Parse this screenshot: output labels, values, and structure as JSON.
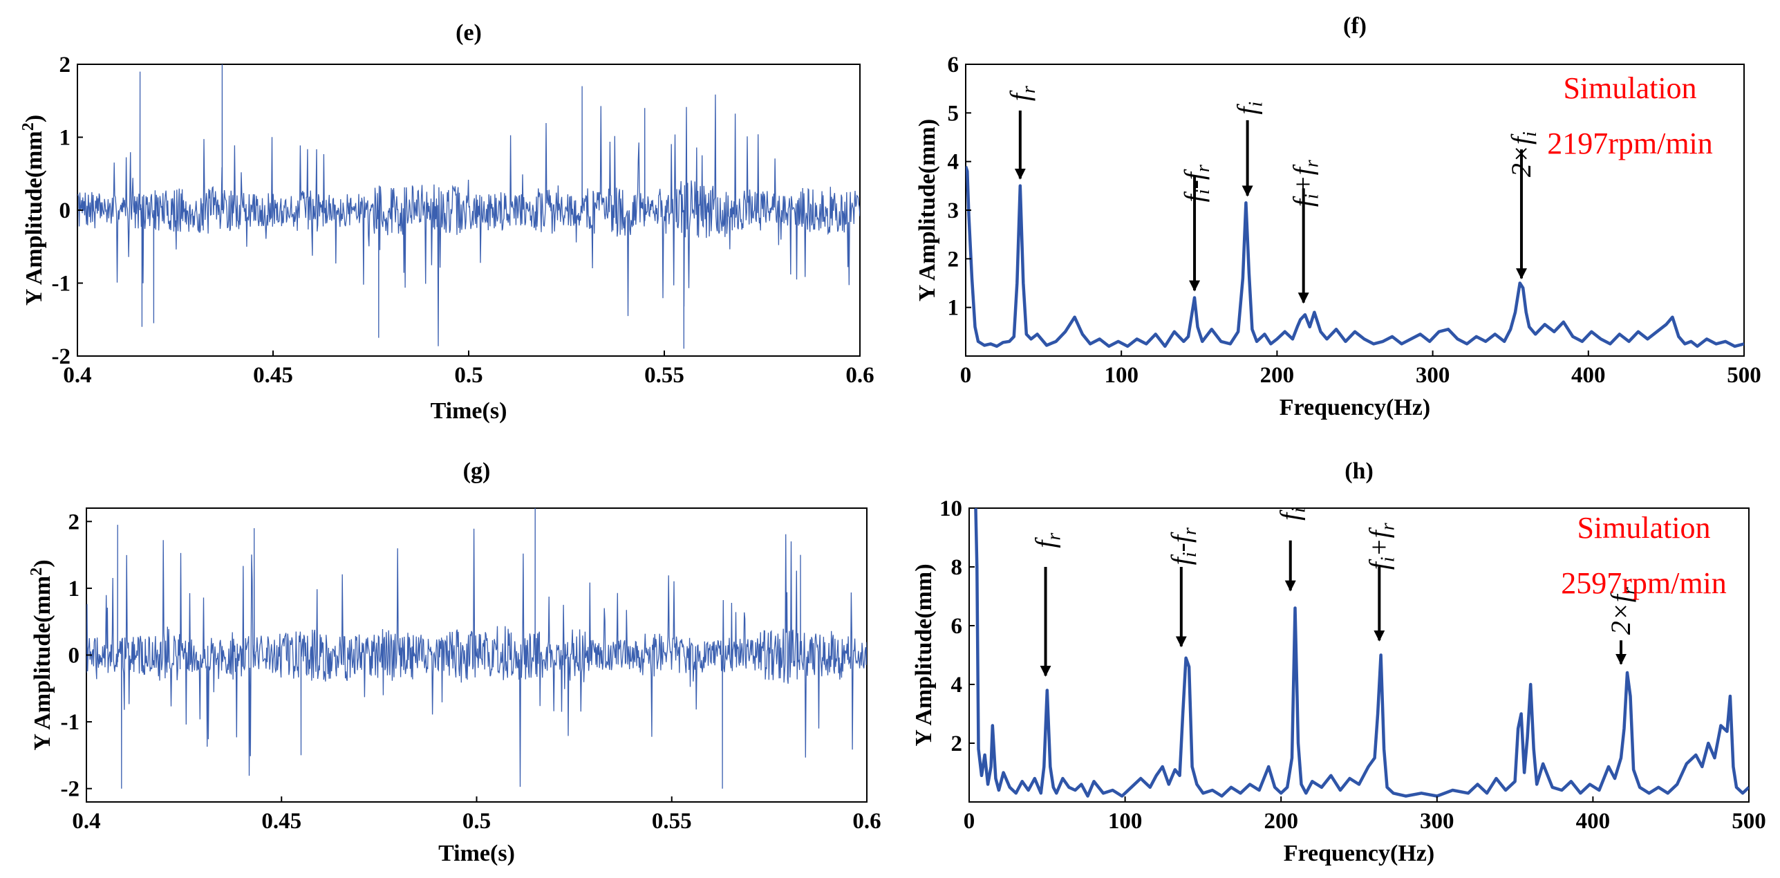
{
  "chart_data": [
    {
      "panel": "e",
      "type": "line",
      "title": "(e)",
      "xlabel": "Time(s)",
      "ylabel_main": "Y Amplitude(mm",
      "ylabel_sup": "2",
      "ylabel_end": ")",
      "xlim": [
        0.4,
        0.6
      ],
      "ylim": [
        -2,
        2
      ],
      "xticks": [
        0.4,
        0.45,
        0.5,
        0.55,
        0.6
      ],
      "yticks": [
        -2,
        -1,
        0,
        1,
        2
      ],
      "xtick_labels": [
        "0.4",
        "0.45",
        "0.5",
        "0.55",
        "0.6"
      ],
      "ytick_labels": [
        "-2",
        "-1",
        "0",
        "1",
        "2"
      ],
      "signal": {
        "seed": 7,
        "samples": 1300,
        "base_amplitude": 0.28,
        "spike_probability": 0.045,
        "spike_amplitude": 0.85
      },
      "peaks": [
        {
          "x": 0.416,
          "y": 1.9
        },
        {
          "x": 0.4165,
          "y": -1.6
        },
        {
          "x": 0.4195,
          "y": -1.55
        },
        {
          "x": 0.437,
          "y": 2.0
        },
        {
          "x": 0.477,
          "y": -1.75
        },
        {
          "x": 0.529,
          "y": 1.7
        },
        {
          "x": 0.545,
          "y": 1.4
        },
        {
          "x": 0.555,
          "y": -1.9
        }
      ],
      "color": "#3a5fb0"
    },
    {
      "panel": "f",
      "type": "line",
      "title": "(f)",
      "xlabel": "Frequency(Hz)",
      "ylabel": "Y Amplitude(mm)",
      "xlim": [
        0,
        500
      ],
      "ylim": [
        0,
        6
      ],
      "xticks": [
        0,
        100,
        200,
        300,
        400,
        500
      ],
      "yticks": [
        1,
        2,
        3,
        4,
        5,
        6
      ],
      "xtick_labels": [
        "0",
        "100",
        "200",
        "300",
        "400",
        "500"
      ],
      "ytick_labels": [
        "1",
        "2",
        "3",
        "4",
        "5",
        "6"
      ],
      "x": [
        0,
        1,
        2,
        4,
        6,
        8,
        12,
        16,
        20,
        24,
        28,
        31,
        33,
        35,
        37,
        39,
        42,
        46,
        52,
        58,
        64,
        70,
        75,
        80,
        86,
        92,
        98,
        104,
        110,
        116,
        122,
        128,
        134,
        140,
        143,
        145,
        147,
        149,
        152,
        158,
        164,
        170,
        175,
        178,
        180,
        182,
        184,
        187,
        192,
        196,
        200,
        205,
        210,
        213,
        215,
        218,
        221,
        224,
        228,
        232,
        238,
        244,
        250,
        256,
        262,
        268,
        274,
        280,
        286,
        292,
        298,
        304,
        310,
        316,
        322,
        328,
        334,
        340,
        346,
        350,
        353,
        356,
        358,
        360,
        362,
        366,
        372,
        378,
        384,
        390,
        396,
        402,
        408,
        414,
        420,
        426,
        432,
        438,
        444,
        450,
        454,
        458,
        462,
        466,
        470,
        476,
        482,
        488,
        494,
        500
      ],
      "y": [
        3.9,
        3.8,
        2.9,
        1.6,
        0.6,
        0.3,
        0.22,
        0.25,
        0.2,
        0.28,
        0.3,
        0.4,
        1.5,
        3.5,
        1.5,
        0.45,
        0.35,
        0.45,
        0.22,
        0.3,
        0.5,
        0.8,
        0.45,
        0.25,
        0.35,
        0.2,
        0.3,
        0.2,
        0.35,
        0.25,
        0.45,
        0.2,
        0.5,
        0.3,
        0.4,
        0.8,
        1.2,
        0.6,
        0.3,
        0.55,
        0.3,
        0.25,
        0.5,
        1.6,
        3.15,
        1.7,
        0.55,
        0.3,
        0.45,
        0.25,
        0.35,
        0.5,
        0.35,
        0.6,
        0.75,
        0.85,
        0.6,
        0.9,
        0.5,
        0.35,
        0.55,
        0.3,
        0.5,
        0.35,
        0.25,
        0.3,
        0.4,
        0.25,
        0.35,
        0.45,
        0.3,
        0.5,
        0.55,
        0.35,
        0.25,
        0.4,
        0.3,
        0.45,
        0.3,
        0.55,
        0.9,
        1.5,
        1.4,
        0.9,
        0.6,
        0.45,
        0.65,
        0.5,
        0.7,
        0.4,
        0.3,
        0.5,
        0.35,
        0.25,
        0.45,
        0.3,
        0.5,
        0.35,
        0.5,
        0.65,
        0.8,
        0.4,
        0.25,
        0.3,
        0.2,
        0.35,
        0.25,
        0.3,
        0.2,
        0.25
      ],
      "annotations": [
        {
          "label": "f",
          "sub": "r",
          "x": 35,
          "text_y": 5.4,
          "arrow_top": 5.05,
          "arrow_tip": 3.65
        },
        {
          "label": "f",
          "sub": "i",
          "extra": "-f",
          "extra_sub": "r",
          "x": 147,
          "text_y": 3.55,
          "arrow_top": 3.7,
          "arrow_tip": 1.35
        },
        {
          "label": "f",
          "sub": "i",
          "x": 181,
          "text_y": 5.1,
          "arrow_top": 4.85,
          "arrow_tip": 3.3
        },
        {
          "label": "f",
          "sub": "i",
          "extra": "+f",
          "extra_sub": "r",
          "x": 217,
          "text_y": 3.55,
          "arrow_top": 3.45,
          "arrow_tip": 1.1
        },
        {
          "label": "2×f",
          "sub": "i",
          "x": 357,
          "text_y": 4.15,
          "arrow_top": 4.25,
          "arrow_tip": 1.6
        }
      ],
      "note_lines": [
        "Simulation",
        "2197rpm/min"
      ],
      "color": "#2f55a8"
    },
    {
      "panel": "g",
      "type": "line",
      "title": "(g)",
      "xlabel": "Time(s)",
      "ylabel_main": "Y Amplitude(mm",
      "ylabel_sup": "2",
      "ylabel_end": ")",
      "xlim": [
        0.4,
        0.6
      ],
      "ylim": [
        -2.2,
        2.2
      ],
      "xticks": [
        0.4,
        0.45,
        0.5,
        0.55,
        0.6
      ],
      "yticks": [
        -2,
        -1,
        0,
        1,
        2
      ],
      "xtick_labels": [
        "0.4",
        "0.45",
        "0.5",
        "0.55",
        "0.6"
      ],
      "ytick_labels": [
        "-2",
        "-1",
        "0",
        "1",
        "2"
      ],
      "signal": {
        "seed": 19,
        "samples": 1300,
        "base_amplitude": 0.3,
        "spike_probability": 0.05,
        "spike_amplitude": 0.9
      },
      "peaks": [
        {
          "x": 0.408,
          "y": 1.95
        },
        {
          "x": 0.409,
          "y": -2.0
        },
        {
          "x": 0.443,
          "y": 1.9
        },
        {
          "x": 0.455,
          "y": -1.5
        },
        {
          "x": 0.515,
          "y": 2.2
        },
        {
          "x": 0.563,
          "y": -2.0
        },
        {
          "x": 0.583,
          "y": 1.5
        }
      ],
      "color": "#3a5fb0"
    },
    {
      "panel": "h",
      "type": "line",
      "title": "(h)",
      "xlabel": "Frequency(Hz)",
      "ylabel": "Y Amplitude(mm)",
      "xlim": [
        0,
        500
      ],
      "ylim": [
        0,
        10
      ],
      "xticks": [
        0,
        100,
        200,
        300,
        400,
        500
      ],
      "yticks": [
        2,
        4,
        6,
        8,
        10
      ],
      "xtick_labels": [
        "0",
        "100",
        "200",
        "300",
        "400",
        "500"
      ],
      "ytick_labels": [
        "2",
        "4",
        "6",
        "8",
        "10"
      ],
      "x": [
        1,
        2,
        3,
        4,
        5,
        6,
        8,
        10,
        12,
        14,
        15,
        17,
        19,
        22,
        26,
        30,
        34,
        38,
        42,
        46,
        48,
        50,
        52,
        54,
        56,
        60,
        64,
        68,
        72,
        76,
        80,
        86,
        92,
        98,
        104,
        110,
        116,
        120,
        124,
        128,
        132,
        135,
        137,
        139,
        141,
        143,
        146,
        150,
        156,
        162,
        168,
        174,
        180,
        186,
        192,
        196,
        200,
        204,
        207,
        209,
        211,
        213,
        216,
        220,
        226,
        232,
        238,
        244,
        250,
        256,
        260,
        262,
        264,
        266,
        268,
        272,
        280,
        290,
        300,
        310,
        320,
        326,
        332,
        338,
        344,
        350,
        352,
        354,
        356,
        358,
        360,
        362,
        364,
        368,
        374,
        380,
        386,
        392,
        398,
        404,
        410,
        414,
        418,
        420,
        422,
        424,
        426,
        430,
        436,
        442,
        448,
        454,
        460,
        466,
        470,
        474,
        478,
        482,
        486,
        488,
        490,
        492,
        496,
        500
      ],
      "y": [
        10.5,
        10.5,
        10.5,
        10.5,
        8.0,
        1.8,
        0.9,
        1.6,
        0.6,
        1.2,
        2.6,
        0.8,
        0.4,
        1.0,
        0.5,
        0.3,
        0.7,
        0.4,
        0.8,
        0.3,
        1.2,
        3.8,
        1.2,
        0.5,
        0.3,
        0.8,
        0.5,
        0.4,
        0.6,
        0.2,
        0.7,
        0.3,
        0.4,
        0.2,
        0.5,
        0.8,
        0.5,
        0.9,
        1.2,
        0.6,
        1.1,
        0.9,
        3.0,
        4.9,
        4.6,
        1.2,
        0.6,
        0.3,
        0.4,
        0.2,
        0.5,
        0.3,
        0.6,
        0.4,
        1.2,
        0.5,
        0.3,
        0.5,
        1.5,
        6.6,
        2.0,
        0.6,
        0.3,
        0.7,
        0.5,
        0.9,
        0.4,
        0.8,
        0.6,
        1.2,
        1.5,
        3.0,
        5.0,
        1.8,
        0.5,
        0.3,
        0.2,
        0.3,
        0.2,
        0.4,
        0.3,
        0.6,
        0.3,
        0.8,
        0.4,
        0.7,
        2.5,
        3.0,
        1.0,
        2.2,
        4.0,
        1.8,
        0.6,
        1.3,
        0.5,
        0.4,
        0.7,
        0.3,
        0.6,
        0.4,
        1.2,
        0.8,
        1.5,
        2.5,
        4.4,
        3.6,
        1.1,
        0.5,
        0.3,
        0.5,
        0.3,
        0.6,
        1.3,
        1.6,
        1.2,
        2.0,
        1.5,
        2.6,
        2.4,
        3.6,
        1.2,
        0.5,
        0.3,
        0.5
      ],
      "annotations": [
        {
          "label": "f",
          "sub": "r",
          "x": 49,
          "text_y": 8.9,
          "arrow_top": 8.0,
          "arrow_tip": 4.3
        },
        {
          "label": "f",
          "sub": "i",
          "extra": "-f",
          "extra_sub": "r",
          "x": 136,
          "text_y": 8.7,
          "arrow_top": 8.0,
          "arrow_tip": 5.3
        },
        {
          "label": "f",
          "sub": "i",
          "x": 206,
          "text_y": 9.8,
          "arrow_top": 8.9,
          "arrow_tip": 7.2
        },
        {
          "label": "f",
          "sub": "i",
          "extra": "+f",
          "extra_sub": "r",
          "x": 263,
          "text_y": 8.7,
          "arrow_top": 8.0,
          "arrow_tip": 5.5
        },
        {
          "label": "2×f",
          "sub": "r",
          "x": 418,
          "text_y": 6.5,
          "arrow_top": 5.5,
          "arrow_tip": 4.7
        }
      ],
      "note_lines": [
        "Simulation",
        "2597rpm/min"
      ],
      "color": "#2f55a8"
    }
  ]
}
